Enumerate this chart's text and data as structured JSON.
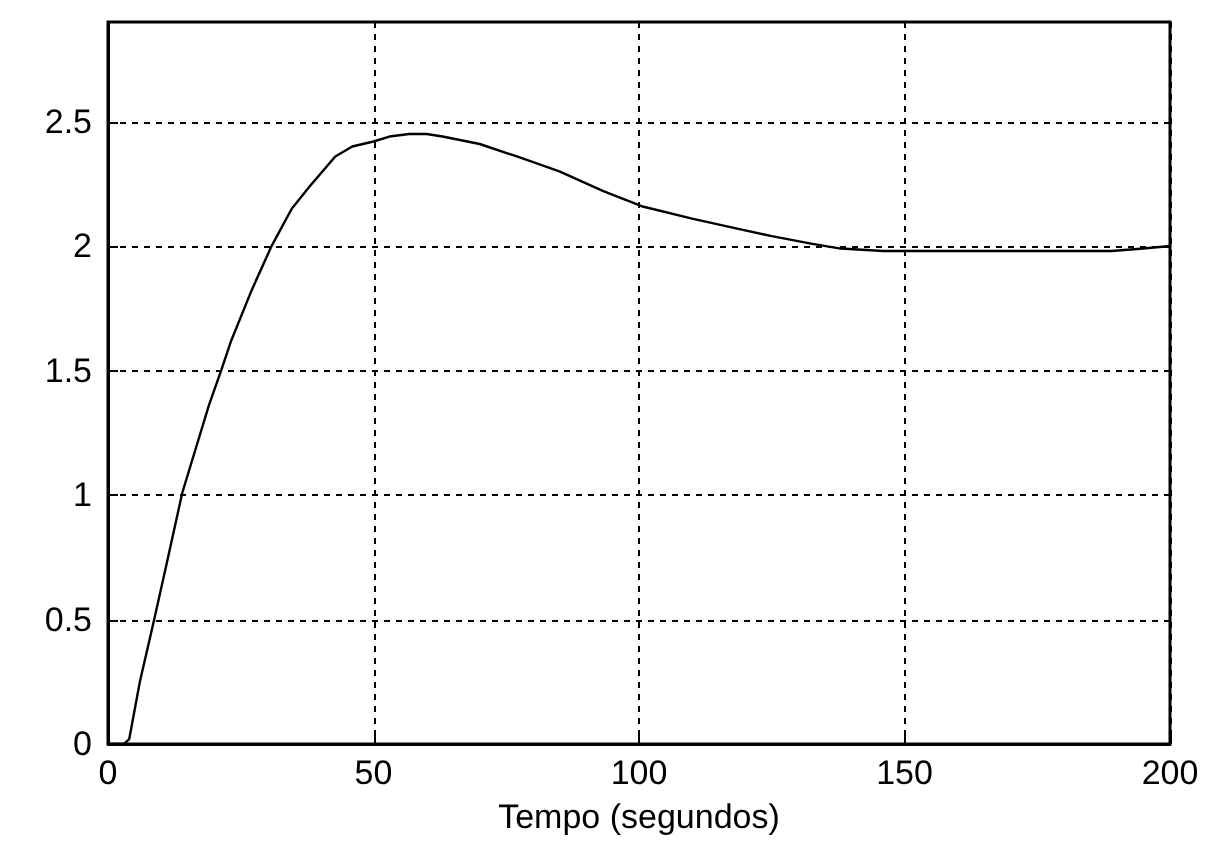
{
  "chart_data": {
    "type": "line",
    "xlabel": "Tempo (segundos)",
    "xlim": [
      0,
      200
    ],
    "xticks": [
      0,
      50,
      100,
      150,
      200
    ],
    "ylim": [
      0,
      2.9
    ],
    "yticks": [
      0,
      0.5,
      1,
      1.5,
      2,
      2.5
    ],
    "grid": true,
    "marker": "none",
    "line_style": "solid",
    "series": [
      {
        "color": "#000000",
        "x": [
          0,
          3,
          4,
          6,
          8.7,
          11,
          14,
          17,
          19,
          21.3,
          23.2,
          27,
          30.8,
          34.6,
          38,
          42.8,
          46,
          50,
          53,
          56.7,
          60,
          63,
          70,
          77,
          85,
          93.4,
          100.5,
          110,
          118.5,
          125,
          132.4,
          138,
          146,
          160,
          175,
          189,
          195,
          200
        ],
        "values": [
          0,
          0,
          0.02,
          0.25,
          0.5,
          0.72,
          1.01,
          1.22,
          1.36,
          1.5,
          1.62,
          1.82,
          2.0,
          2.15,
          2.24,
          2.36,
          2.4,
          2.42,
          2.44,
          2.45,
          2.45,
          2.44,
          2.41,
          2.36,
          2.3,
          2.22,
          2.16,
          2.11,
          2.07,
          2.04,
          2.01,
          1.99,
          1.98,
          1.98,
          1.98,
          1.98,
          1.99,
          2.0
        ]
      }
    ]
  }
}
